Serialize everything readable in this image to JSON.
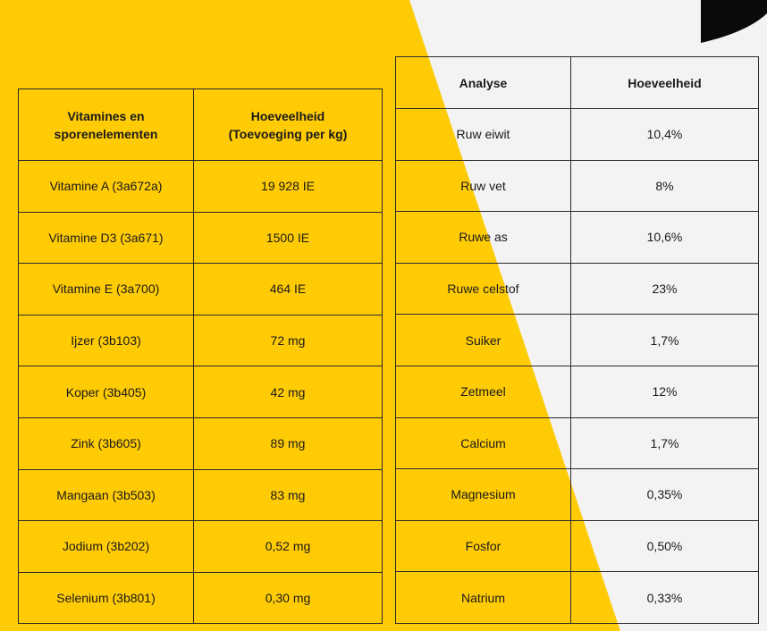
{
  "colors": {
    "background_yellow": "#ffcb05",
    "panel_white": "#f3f3f3",
    "corner_black": "#0a0a0a"
  },
  "vitamins_table": {
    "headers": [
      "Vitamines en sporenelementen",
      "Hoeveelheid (Toevoeging per kg)"
    ],
    "rows": [
      [
        "Vitamine A (3a672a)",
        "19 928 IE"
      ],
      [
        "Vitamine D3 (3a671)",
        "1500 IE"
      ],
      [
        "Vitamine E (3a700)",
        "464 IE"
      ],
      [
        "Ijzer (3b103)",
        "72 mg"
      ],
      [
        "Koper (3b405)",
        "42 mg"
      ],
      [
        "Zink (3b605)",
        "89 mg"
      ],
      [
        "Mangaan (3b503)",
        "83 mg"
      ],
      [
        "Jodium (3b202)",
        "0,52 mg"
      ],
      [
        "Selenium (3b801)",
        "0,30 mg"
      ]
    ]
  },
  "analysis_table": {
    "headers": [
      "Analyse",
      "Hoeveelheid"
    ],
    "rows": [
      [
        "Ruw eiwit",
        "10,4%"
      ],
      [
        "Ruw vet",
        "8%"
      ],
      [
        "Ruwe as",
        "10,6%"
      ],
      [
        "Ruwe celstof",
        "23%"
      ],
      [
        "Suiker",
        "1,7%"
      ],
      [
        "Zetmeel",
        "12%"
      ],
      [
        "Calcium",
        "1,7%"
      ],
      [
        "Magnesium",
        "0,35%"
      ],
      [
        "Fosfor",
        "0,50%"
      ],
      [
        "Natrium",
        "0,33%"
      ]
    ]
  }
}
